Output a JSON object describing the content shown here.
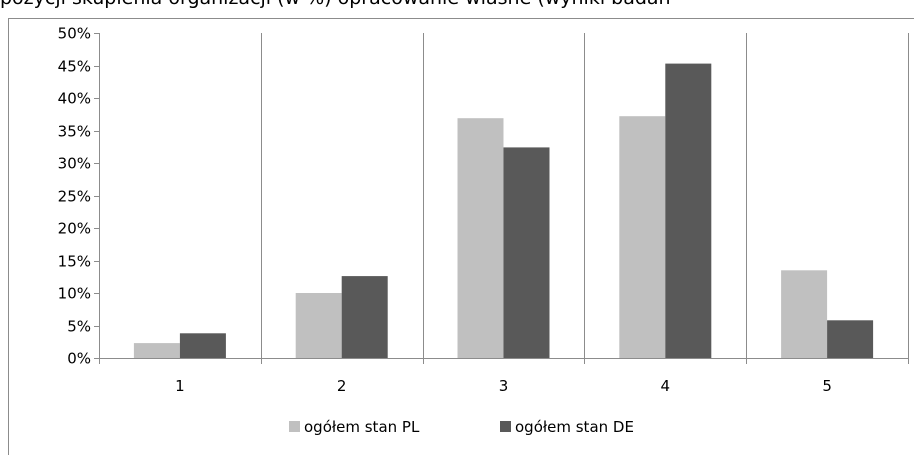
{
  "caption": {
    "text": "pozycji skupienia organizacji (w %) opracowanie własne (wyniki badań"
  },
  "colors": {
    "series_pl": "#c0c0c0",
    "series_de": "#595959",
    "gridline": "#8c8c8c",
    "axis": "#8c8c8c"
  },
  "chart_data": {
    "type": "bar",
    "categories": [
      "1",
      "2",
      "3",
      "4",
      "5"
    ],
    "series": [
      {
        "name": "ogółem stan PL",
        "values": [
          2.3,
          10.0,
          36.9,
          37.2,
          13.5
        ]
      },
      {
        "name": "ogółem stan DE",
        "values": [
          3.8,
          12.6,
          32.4,
          45.3,
          5.8
        ]
      }
    ],
    "ylim": [
      0,
      50
    ],
    "yticks": [
      0,
      5,
      10,
      15,
      20,
      25,
      30,
      35,
      40,
      45,
      50
    ],
    "ytick_labels": [
      "0%",
      "5%",
      "10%",
      "15%",
      "20%",
      "25%",
      "30%",
      "35%",
      "40%",
      "45%",
      "50%"
    ],
    "grid": {
      "vertical": true,
      "horizontal": false
    },
    "legend_position": "bottom",
    "title": "",
    "xlabel": "",
    "ylabel": ""
  }
}
